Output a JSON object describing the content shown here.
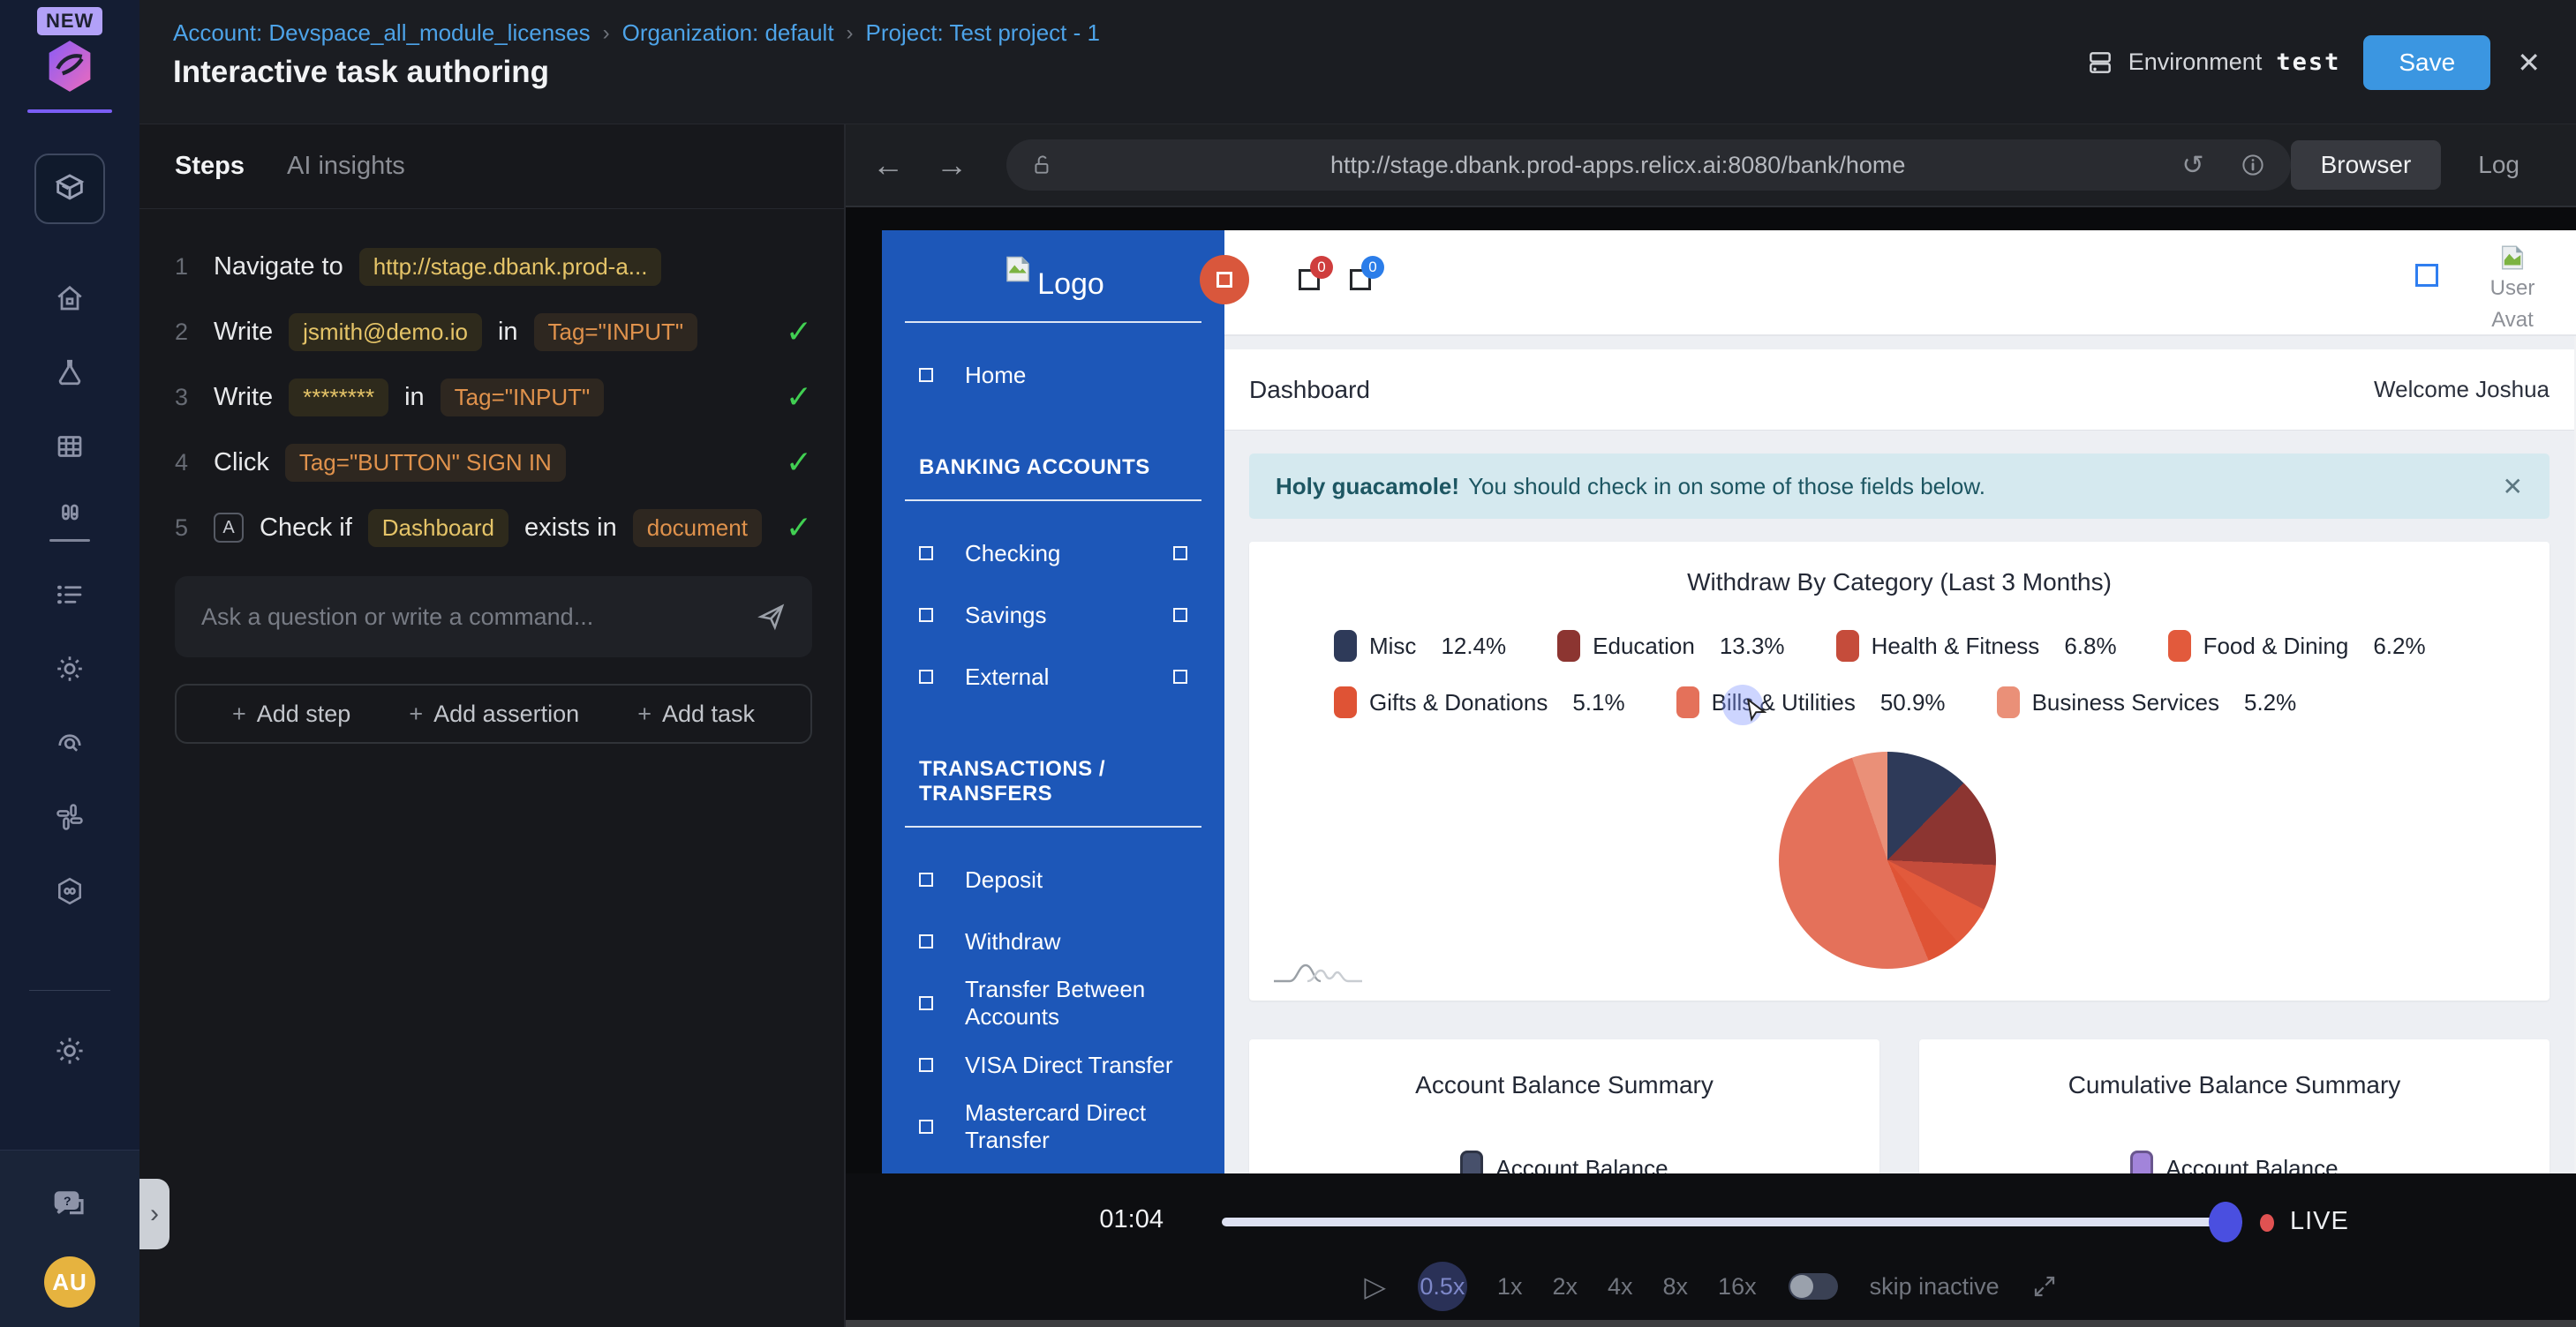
{
  "topbar": {
    "breadcrumb": [
      "Account: Devspace_all_module_licenses",
      "Organization: default",
      "Project: Test project - 1"
    ],
    "separator": "›",
    "title": "Interactive task authoring",
    "environment_label": "Environment",
    "environment_value": "test",
    "save_label": "Save",
    "close_glyph": "✕"
  },
  "rail": {
    "new_badge": "NEW",
    "icons": [
      "modules-cube",
      "home",
      "experiments-flask",
      "data-grid",
      "suites-columns",
      "runs-list",
      "settings-gear",
      "inspect-search",
      "integrations",
      "sessions-loop",
      "admin-gear",
      "help-chat"
    ],
    "avatar_initials": "AU",
    "handle_glyph": "›"
  },
  "steps_panel": {
    "tabs": [
      {
        "label": "Steps",
        "active": true
      },
      {
        "label": "AI insights",
        "active": false
      }
    ],
    "assert_glyph": "A",
    "check_glyph": "✓",
    "steps": [
      {
        "num": "1",
        "assert": false,
        "check": false,
        "parts": [
          [
            "text",
            "Navigate to"
          ],
          [
            "y",
            "http://stage.dbank.prod-a..."
          ]
        ]
      },
      {
        "num": "2",
        "assert": false,
        "check": true,
        "parts": [
          [
            "text",
            "Write"
          ],
          [
            "y",
            "jsmith@demo.io"
          ],
          [
            "text",
            "in"
          ],
          [
            "o",
            "Tag=\"INPUT\""
          ]
        ]
      },
      {
        "num": "3",
        "assert": false,
        "check": true,
        "parts": [
          [
            "text",
            "Write"
          ],
          [
            "y",
            "********"
          ],
          [
            "text",
            "in"
          ],
          [
            "o",
            "Tag=\"INPUT\""
          ]
        ]
      },
      {
        "num": "4",
        "assert": false,
        "check": true,
        "parts": [
          [
            "text",
            "Click"
          ],
          [
            "o",
            "Tag=\"BUTTON\" SIGN IN"
          ]
        ]
      },
      {
        "num": "5",
        "assert": true,
        "check": true,
        "parts": [
          [
            "text",
            "Check if"
          ],
          [
            "y",
            "Dashboard"
          ],
          [
            "text",
            "exists in"
          ],
          [
            "o",
            "document"
          ]
        ]
      }
    ],
    "input_placeholder": "Ask a question or write a command...",
    "plus_glyph": "+",
    "actions": [
      "Add step",
      "Add assertion",
      "Add task"
    ]
  },
  "browser": {
    "back_glyph": "←",
    "forward_glyph": "→",
    "url": "http://stage.dbank.prod-apps.relicx.ai:8080/bank/home",
    "reload_glyph": "↺",
    "tabs": [
      {
        "label": "Browser",
        "active": true
      },
      {
        "label": "Log",
        "active": false
      }
    ]
  },
  "bank_app": {
    "logo_text": "Logo",
    "nav": [
      {
        "type": "item",
        "label": "Home",
        "right": false
      },
      {
        "type": "section",
        "label": "BANKING ACCOUNTS"
      },
      {
        "type": "item",
        "label": "Checking",
        "right": true
      },
      {
        "type": "item",
        "label": "Savings",
        "right": true
      },
      {
        "type": "item",
        "label": "External",
        "right": true
      },
      {
        "type": "section",
        "label": "TRANSACTIONS / TRANSFERS"
      },
      {
        "type": "item",
        "label": "Deposit",
        "right": false
      },
      {
        "type": "item",
        "label": "Withdraw",
        "right": false
      },
      {
        "type": "item",
        "label": "Transfer Between Accounts",
        "right": false
      },
      {
        "type": "item",
        "label": "VISA Direct Transfer",
        "right": false
      },
      {
        "type": "item",
        "label": "Mastercard Direct Transfer",
        "right": false
      }
    ],
    "header": {
      "badges": [
        {
          "value": "0",
          "color": "#cf3d3d"
        },
        {
          "value": "0",
          "color": "#2b7de9"
        }
      ],
      "avatar_alt": "User Avat"
    },
    "dashboard_title": "Dashboard",
    "welcome": "Welcome Joshua",
    "alert": {
      "bold": "Holy guacamole!",
      "text": "You should check in on some of those fields below.",
      "close_glyph": "✕"
    }
  },
  "chart_data": [
    {
      "type": "pie",
      "title": "Withdraw By Category (Last 3 Months)",
      "labels": [
        "Misc",
        "Education",
        "Health & Fitness",
        "Food & Dining",
        "Gifts & Donations",
        "Bills & Utilities",
        "Business Services"
      ],
      "values": [
        12.4,
        13.3,
        6.8,
        6.2,
        5.1,
        50.9,
        5.2
      ],
      "percent_labels": [
        "12.4%",
        "13.3%",
        "6.8%",
        "6.2%",
        "5.1%",
        "50.9%",
        "5.2%"
      ],
      "colors": [
        "#2e3a59",
        "#8c3531",
        "#c54c3b",
        "#e25a3c",
        "#df5335",
        "#e4715a",
        "#ea9078"
      ],
      "legend_rows": [
        4,
        3
      ],
      "legend_position": "top",
      "start_angle_deg": 0
    },
    {
      "type": "bar",
      "title": "Account Balance Summary",
      "legend": [
        {
          "label": "Account Balance",
          "color": "#47506b"
        }
      ]
    },
    {
      "type": "bar",
      "title": "Cumulative Balance Summary",
      "legend": [
        {
          "label": "Account Balance",
          "color": "#a284da"
        }
      ]
    }
  ],
  "playback": {
    "time": "01:04",
    "live_label": "LIVE",
    "progress_pct": 97,
    "play_glyph": "▷",
    "speeds": [
      "0.5x",
      "1x",
      "2x",
      "4x",
      "8x",
      "16x"
    ],
    "active_speed": "0.5x",
    "skip_label": "skip inactive"
  }
}
